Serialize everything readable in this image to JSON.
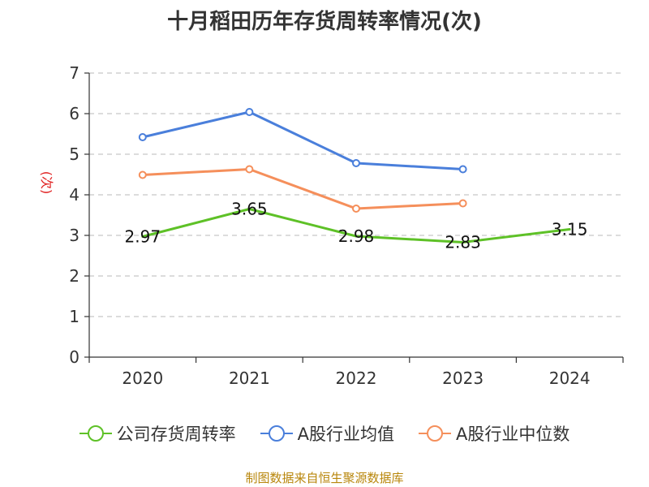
{
  "title": "十月稻田历年存货周转率情况(次)",
  "source": "制图数据来自恒生聚源数据库",
  "chart_data": {
    "type": "line",
    "title": "十月稻田历年存货周转率情况(次)",
    "ylabel": "(次)",
    "xlabel": "",
    "categories": [
      "2020",
      "2021",
      "2022",
      "2023",
      "2024"
    ],
    "ylim": [
      0,
      7
    ],
    "yticks": [
      0,
      1,
      2,
      3,
      4,
      5,
      6,
      7
    ],
    "grid": true,
    "legend_position": "bottom",
    "series": [
      {
        "name": "公司存货周转率",
        "color": "#5ec127",
        "values": [
          2.97,
          3.65,
          2.98,
          2.83,
          3.15
        ],
        "show_labels": true,
        "show_markers": false
      },
      {
        "name": "A股行业均值",
        "color": "#4a7fdb",
        "values": [
          5.42,
          6.04,
          4.78,
          4.63,
          null
        ],
        "show_labels": false,
        "show_markers": true
      },
      {
        "name": "A股行业中位数",
        "color": "#f58f5b",
        "values": [
          4.49,
          4.63,
          3.66,
          3.79,
          null
        ],
        "show_labels": false,
        "show_markers": true
      }
    ]
  }
}
